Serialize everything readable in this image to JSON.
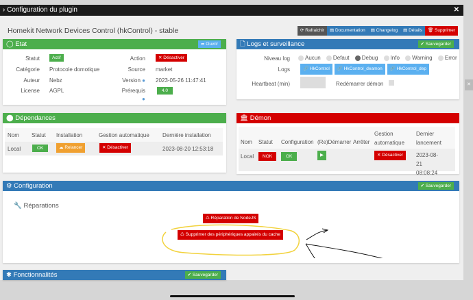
{
  "window": {
    "title": "Configuration du plugin",
    "close_icon": "close-icon"
  },
  "plugin_title": "Homekit Network Devices Control (hkControl) - stable",
  "toolbar": {
    "refresh": "Rafraichir",
    "documentation": "Documentation",
    "changelog": "Changelog",
    "details": "Détails",
    "delete": "Supprimer"
  },
  "etat": {
    "title": "Etat",
    "open": "Ouvrir",
    "statut_label": "Statut",
    "statut": "Actif",
    "action_label": "Action",
    "action": "Désactiver",
    "categorie_label": "Catégorie",
    "categorie": "Protocole domotique",
    "source_label": "Source",
    "source": "market",
    "auteur_label": "Auteur",
    "auteur": "Nebz",
    "version_label": "Version",
    "version": "2023-05-26 11:47:41",
    "license_label": "License",
    "license": "AGPL",
    "prerequis_label": "Prérequis",
    "prerequis": "4.0"
  },
  "logs": {
    "title": "Logs et surveillance",
    "save": "Sauvegarder",
    "niveau_label": "Niveau log",
    "levels": [
      "Aucun",
      "Defaut",
      "Debug",
      "Info",
      "Warning",
      "Error"
    ],
    "selected_level": "Debug",
    "logs_label": "Logs",
    "log_buttons": [
      "HkControl",
      "HkControl_deamon",
      "HkControl_dep"
    ],
    "heartbeat_label": "Heartbeat (min)",
    "heartbeat_value": "",
    "restart_label": "Redémarrer démon",
    "restart_checked": false
  },
  "dependances": {
    "title": "Dépendances",
    "headers": [
      "Nom",
      "Statut",
      "Installation",
      "Gestion automatique",
      "Dernière installation"
    ],
    "row": {
      "nom": "Local",
      "statut": "OK",
      "installation": "Relancer",
      "gestion": "Désactiver",
      "derniere": "2023-08-20 12:53:18"
    }
  },
  "demon": {
    "title": "Démon",
    "headers": [
      "Nom",
      "Statut",
      "Configuration",
      "(Re)Démarrer",
      "Arrêter",
      "Gestion automatique",
      "Dernier lancement"
    ],
    "row": {
      "nom": "Local",
      "statut": "NOK",
      "configuration": "OK",
      "gestion": "Désactiver",
      "dernier": "2023-08-21 08:08:24"
    }
  },
  "configuration": {
    "title": "Configuration",
    "save": "Sauvegarder",
    "section": "Réparations",
    "repair_nodejs": "Réparation de NodeJS",
    "delete_cache": "Supprimer des périphériques appairés du cache"
  },
  "fonctionnalites": {
    "title": "Fonctionnalités",
    "save": "Sauvegarder"
  },
  "colors": {
    "green": "#4cae4c",
    "blue": "#337ab7",
    "red": "#d40000",
    "orange": "#f0a030",
    "highlight": "#f2d23c"
  }
}
